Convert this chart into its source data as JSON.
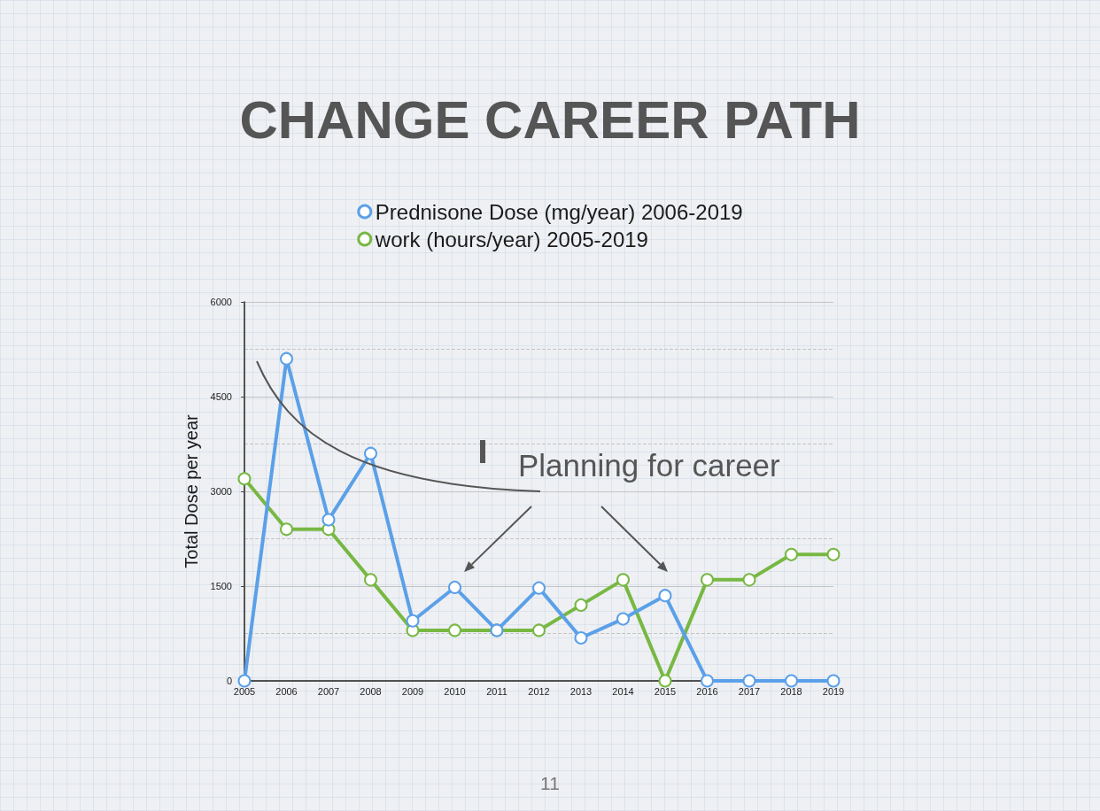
{
  "chart_data": {
    "type": "line",
    "title": "CHANGE CAREER PATH",
    "ylabel": "Total Dose per year",
    "categories": [
      "2005",
      "2006",
      "2007",
      "2008",
      "2009",
      "2010",
      "2011",
      "2012",
      "2013",
      "2014",
      "2015",
      "2016",
      "2017",
      "2018",
      "2019"
    ],
    "series": [
      {
        "name": "Prednisone Dose (mg/year) 2006-2019",
        "color": "#5ba0e8",
        "values": [
          0,
          5100,
          2550,
          3600,
          950,
          1480,
          800,
          1470,
          680,
          980,
          1350,
          0,
          0,
          0,
          0
        ]
      },
      {
        "name": "work (hours/year) 2005-2019",
        "color": "#77b843",
        "values": [
          3200,
          2400,
          2400,
          1600,
          800,
          800,
          800,
          800,
          1200,
          1600,
          0,
          1600,
          1600,
          2000,
          2000
        ]
      }
    ],
    "ylim": [
      0,
      6000
    ],
    "yticks": [
      0,
      {
        "value": 750,
        "label": null
      },
      1500,
      {
        "value": 2250,
        "label": null
      },
      3000,
      {
        "value": 3750,
        "label": null
      },
      4500,
      {
        "value": 5250,
        "label": null
      },
      6000
    ],
    "grid": "y",
    "legend": "top",
    "marker": "circle",
    "line_style": "solid",
    "annotations": [
      "Planning for career",
      "11"
    ]
  }
}
